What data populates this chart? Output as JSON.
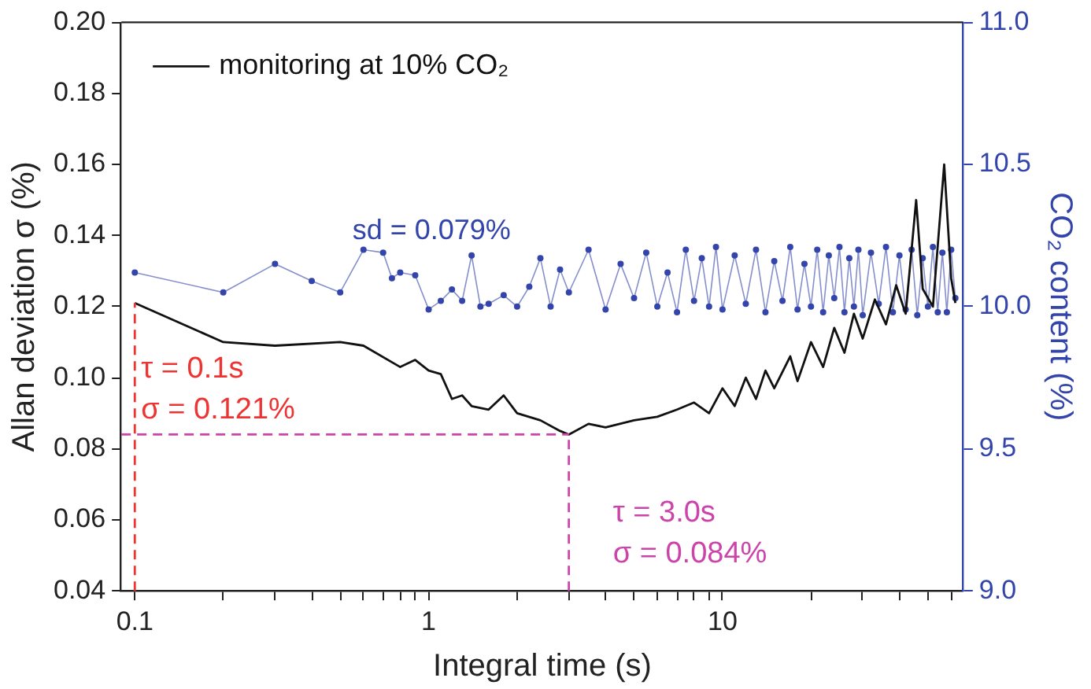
{
  "chart_data": {
    "type": "line",
    "xlabel": "Integral time (s)",
    "ylabel": "Allan deviation σ (%)",
    "y2label": "CO₂ content (%)",
    "log": "x",
    "grid": false,
    "legend": "top left",
    "xlim": [
      0.09,
      66
    ],
    "xticks": [
      {
        "value": 0.1,
        "label": "0.1"
      },
      {
        "value": 0.2,
        "label": null
      },
      {
        "value": 0.3,
        "label": null
      },
      {
        "value": 0.4,
        "label": null
      },
      {
        "value": 0.5,
        "label": null
      },
      {
        "value": 0.6,
        "label": null
      },
      {
        "value": 0.7,
        "label": null
      },
      {
        "value": 0.8,
        "label": null
      },
      {
        "value": 0.9,
        "label": null
      },
      1,
      {
        "value": 2,
        "label": null
      },
      {
        "value": 3,
        "label": null
      },
      {
        "value": 4,
        "label": null
      },
      {
        "value": 5,
        "label": null
      },
      {
        "value": 6,
        "label": null
      },
      {
        "value": 7,
        "label": null
      },
      {
        "value": 8,
        "label": null
      },
      {
        "value": 9,
        "label": null
      },
      10,
      {
        "value": 20,
        "label": null
      },
      {
        "value": 30,
        "label": null
      },
      {
        "value": 40,
        "label": null
      },
      {
        "value": 50,
        "label": null
      },
      {
        "value": 60,
        "label": null
      }
    ],
    "ylim": [
      0.04,
      0.2
    ],
    "yticks": [
      0.04,
      0.06,
      0.08,
      {
        "value": 0.1,
        "label": "0.10"
      },
      0.12,
      0.14,
      0.16,
      0.18,
      {
        "value": 0.2,
        "label": "0.20"
      }
    ],
    "y2lim": [
      9,
      11
    ],
    "y2ticks": [
      {
        "value": 9,
        "label": "9.0"
      },
      9.5,
      {
        "value": 10,
        "label": "10.0"
      },
      10.5,
      {
        "value": 11,
        "label": "11.0"
      }
    ],
    "series": [
      {
        "name": "monitoring at 10% CO₂",
        "color": "#111111",
        "marker": "none",
        "x": [
          0.1,
          0.2,
          0.3,
          0.5,
          0.6,
          0.8,
          0.9,
          1.0,
          1.1,
          1.2,
          1.3,
          1.4,
          1.6,
          1.8,
          2.0,
          2.4,
          2.8,
          3.0,
          3.5,
          4,
          5,
          6,
          7,
          8,
          9,
          10,
          11,
          12,
          13,
          14,
          15,
          17,
          18,
          20,
          22,
          24,
          26,
          28,
          30,
          33,
          36,
          39,
          42,
          45.6,
          48,
          52,
          56.8,
          60,
          62
        ],
        "values": [
          0.121,
          0.11,
          0.109,
          0.11,
          0.109,
          0.103,
          0.105,
          0.102,
          0.101,
          0.094,
          0.095,
          0.092,
          0.091,
          0.095,
          0.09,
          0.088,
          0.085,
          0.084,
          0.087,
          0.086,
          0.088,
          0.089,
          0.091,
          0.093,
          0.09,
          0.097,
          0.092,
          0.1,
          0.094,
          0.102,
          0.097,
          0.106,
          0.099,
          0.11,
          0.103,
          0.114,
          0.107,
          0.118,
          0.111,
          0.122,
          0.115,
          0.126,
          0.118,
          0.15,
          0.125,
          0.12,
          0.16,
          0.128,
          0.121
        ]
      },
      {
        "color": "#3344aa",
        "axis": "y2",
        "marker": "circle",
        "x": [
          0.1,
          0.2,
          0.3,
          0.4,
          0.5,
          0.6,
          0.7,
          0.75,
          0.8,
          0.9,
          1.0,
          1.1,
          1.2,
          1.3,
          1.4,
          1.5,
          1.6,
          1.8,
          2.0,
          2.2,
          2.4,
          2.6,
          2.8,
          3.0,
          3.5,
          4,
          4.5,
          5,
          5.5,
          6,
          6.5,
          7,
          7.5,
          8,
          8.5,
          9,
          9.5,
          10,
          11,
          12,
          13,
          14,
          15,
          16,
          17,
          18,
          19,
          20,
          21,
          22,
          23,
          24,
          25,
          26,
          27,
          28,
          29,
          30,
          32,
          34,
          36,
          38,
          40,
          42,
          44,
          46,
          48,
          50,
          52,
          54,
          56,
          58,
          60,
          62
        ],
        "values": [
          10.12,
          10.05,
          10.15,
          10.09,
          10.05,
          10.2,
          10.19,
          10.1,
          10.12,
          10.11,
          9.99,
          10.02,
          10.06,
          10.02,
          10.18,
          10.0,
          10.01,
          10.04,
          10.0,
          10.07,
          10.17,
          10.0,
          10.13,
          10.05,
          10.2,
          9.99,
          10.15,
          10.03,
          10.19,
          10.0,
          10.12,
          9.98,
          10.2,
          10.02,
          10.17,
          10.0,
          10.21,
          9.99,
          10.18,
          10.01,
          10.2,
          9.98,
          10.16,
          10.02,
          10.21,
          9.99,
          10.15,
          10.0,
          10.2,
          9.98,
          10.18,
          10.03,
          10.21,
          9.98,
          10.17,
          10.0,
          10.2,
          9.97,
          10.19,
          10.01,
          10.21,
          9.98,
          10.18,
          9.99,
          10.2,
          9.97,
          10.17,
          10.0,
          10.21,
          9.98,
          10.19,
          9.98,
          10.2,
          10.03
        ]
      }
    ],
    "ref_lines": [
      {
        "axis": "x",
        "value": 0.1,
        "label": "τ = 0.1s\nσ = 0.121%",
        "color": "#ee3333",
        "line_style": "dashed"
      },
      {
        "axis": "x",
        "value": 3.0,
        "label": "τ = 3.0s\nσ = 0.084%",
        "color": "#cc44aa",
        "line_style": "dashed"
      },
      {
        "axis": "y",
        "value": 0.084,
        "color": "#cc44aa",
        "line_style": "dashed"
      }
    ],
    "annotations": [
      "sd = 0.079%"
    ]
  }
}
